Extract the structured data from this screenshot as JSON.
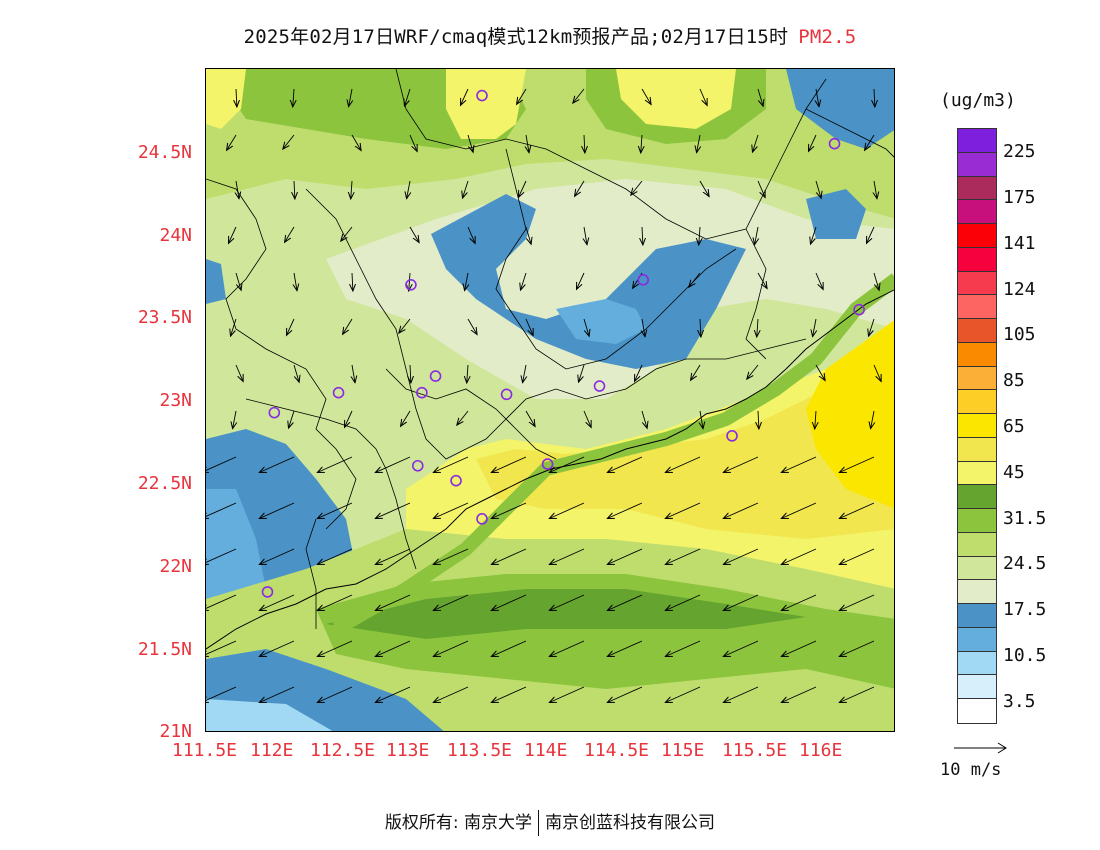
{
  "title": {
    "main": "2025年02月17日WRF/cmaq模式12km预报产品;02月17日15时",
    "variable": "PM2.5"
  },
  "colors": {
    "axis_labels": "#e8343c",
    "variable_title": "#e8343c",
    "station_marker": "#8a2be2"
  },
  "map": {
    "lat_labels": [
      "24.5N",
      "24N",
      "23.5N",
      "23N",
      "22.5N",
      "22N",
      "21.5N",
      "21N"
    ],
    "lon_labels": [
      "111.5E",
      "112E",
      "112.5E",
      "113E",
      "113.5E",
      "114E",
      "114.5E",
      "115E",
      "115.5E",
      "116E"
    ],
    "stations": [
      {
        "lon": 113.52,
        "lat": 24.84
      },
      {
        "lon": 116.1,
        "lat": 24.55
      },
      {
        "lon": 113.0,
        "lat": 23.7
      },
      {
        "lon": 114.7,
        "lat": 23.73
      },
      {
        "lon": 116.28,
        "lat": 23.55
      },
      {
        "lon": 113.18,
        "lat": 23.15
      },
      {
        "lon": 112.47,
        "lat": 23.05
      },
      {
        "lon": 113.08,
        "lat": 23.05
      },
      {
        "lon": 113.7,
        "lat": 23.04
      },
      {
        "lon": 114.38,
        "lat": 23.09
      },
      {
        "lon": 112.0,
        "lat": 22.93
      },
      {
        "lon": 115.35,
        "lat": 22.79
      },
      {
        "lon": 113.05,
        "lat": 22.61
      },
      {
        "lon": 114.0,
        "lat": 22.62
      },
      {
        "lon": 113.33,
        "lat": 22.52
      },
      {
        "lon": 113.52,
        "lat": 22.29
      },
      {
        "lon": 111.95,
        "lat": 21.85
      }
    ]
  },
  "colorbar": {
    "unit": "(ug/m3)",
    "colors": [
      "#7d1fdc",
      "#9a2cd4",
      "#aa2b5c",
      "#c8107c",
      "#fb0007",
      "#f6003e",
      "#f63b4f",
      "#fd6563",
      "#e8552b",
      "#fa8b00",
      "#fbaf36",
      "#fdcf26",
      "#fbe600",
      "#f1e64e",
      "#f3f469",
      "#64a42f",
      "#8cc43e",
      "#bedd6d",
      "#d0e69a",
      "#e3ecc8",
      "#4b93c6",
      "#64aede",
      "#a1d9f5",
      "#d6effa",
      "#ffffff"
    ],
    "labels": [
      "225",
      "175",
      "141",
      "124",
      "105",
      "85",
      "65",
      "45",
      "31.5",
      "24.5",
      "17.5",
      "10.5",
      "3.5"
    ]
  },
  "wind_key": {
    "label": "10 m/s"
  },
  "footer": {
    "copyright": "版权所有: 南京大学",
    "company": "南京创蓝科技有限公司"
  }
}
